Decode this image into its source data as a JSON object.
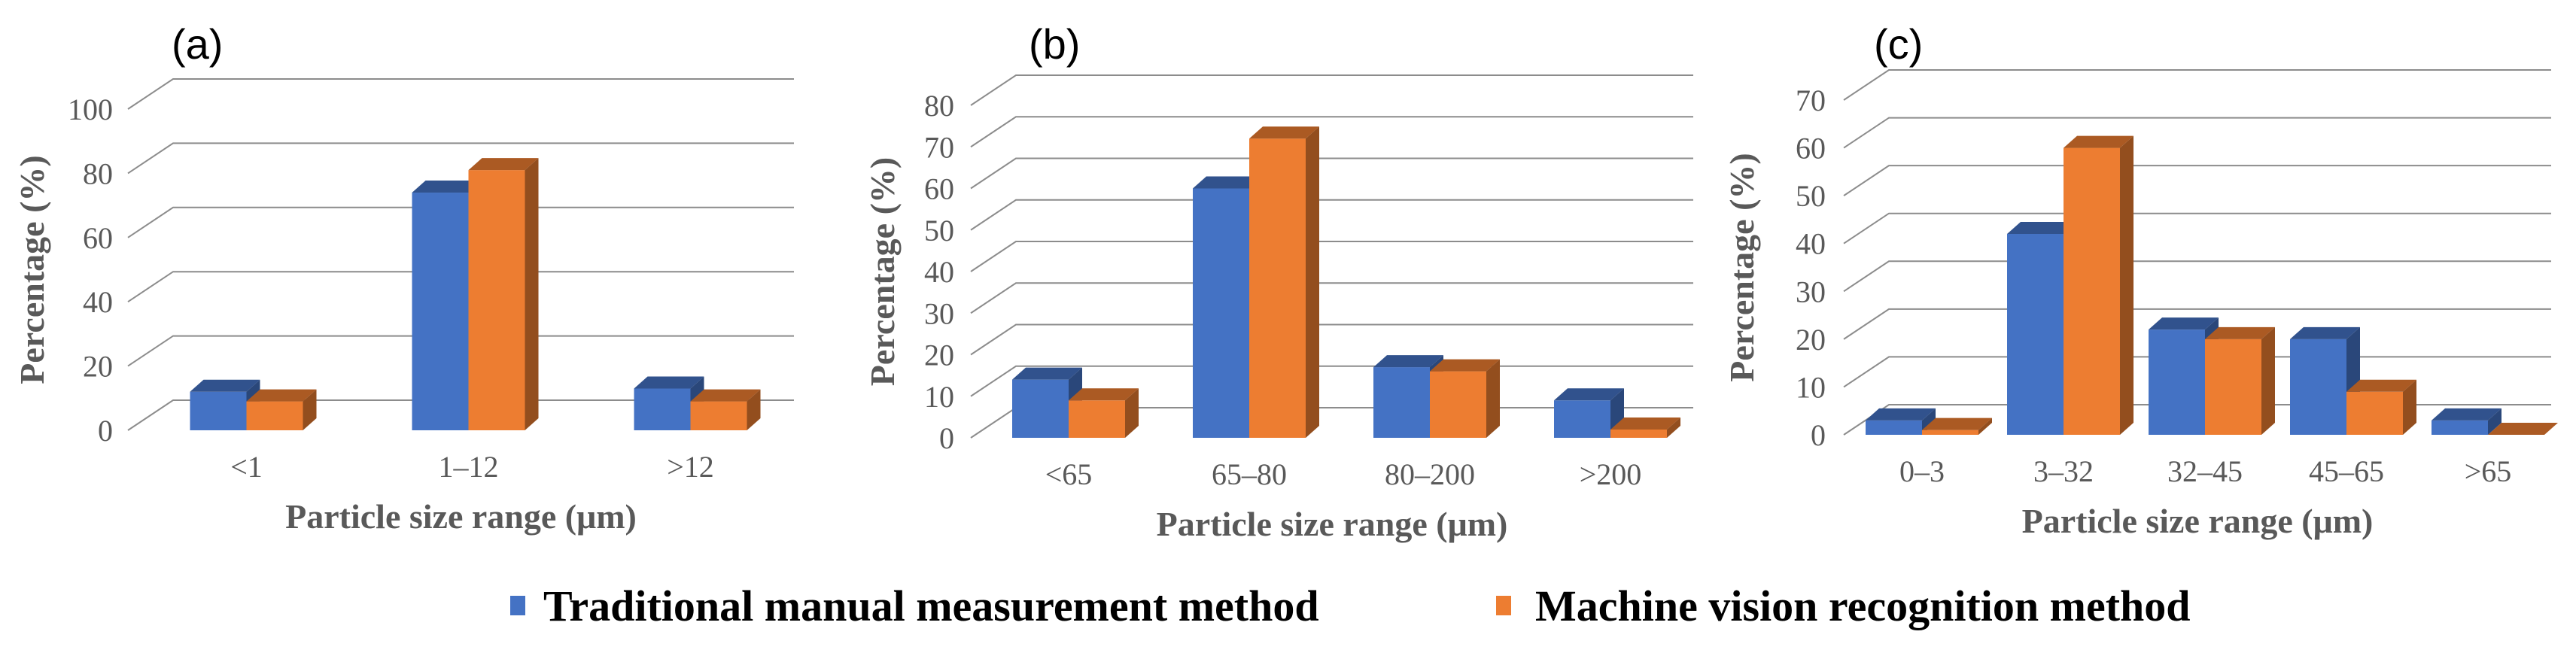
{
  "chart_data": [
    {
      "type": "bar",
      "panel_label": "(a)",
      "categories": [
        "<1",
        "1–12",
        ">12"
      ],
      "series": [
        {
          "name": "Traditional manual measurement method",
          "values": [
            12,
            74,
            13
          ]
        },
        {
          "name": "Machine vision recognition method",
          "values": [
            9,
            81,
            9
          ]
        }
      ],
      "xlabel": "Particle size range (μm)",
      "ylabel": "Percentage (%)",
      "ylim": [
        0,
        100
      ],
      "yticks": [
        "0",
        "20",
        "40",
        "60",
        "80",
        "100"
      ]
    },
    {
      "type": "bar",
      "panel_label": "(b)",
      "categories": [
        "<65",
        "65–80",
        "80–200",
        ">200"
      ],
      "series": [
        {
          "name": "Traditional manual measurement method",
          "values": [
            14,
            60,
            17,
            9
          ]
        },
        {
          "name": "Machine vision recognition method",
          "values": [
            9,
            72,
            16,
            2
          ]
        }
      ],
      "xlabel": "Particle size range (μm)",
      "ylabel": "Percentage (%)",
      "ylim": [
        0,
        80
      ],
      "yticks": [
        "0",
        "10",
        "20",
        "30",
        "40",
        "50",
        "60",
        "70",
        "80"
      ]
    },
    {
      "type": "bar",
      "panel_label": "(c)",
      "categories": [
        "0–3",
        "3–32",
        "32–45",
        "45–65",
        ">65"
      ],
      "series": [
        {
          "name": "Traditional manual measurement method",
          "values": [
            3,
            42,
            22,
            20,
            3
          ]
        },
        {
          "name": "Machine vision recognition method",
          "values": [
            1,
            60,
            20,
            9,
            0
          ]
        }
      ],
      "xlabel": "Particle size range (μm)",
      "ylabel": "Percentage (%)",
      "ylim": [
        0,
        70
      ],
      "yticks": [
        "0",
        "10",
        "20",
        "30",
        "40",
        "50",
        "60",
        "70"
      ]
    }
  ],
  "legend": [
    {
      "name": "Traditional manual measurement method",
      "color": "#4472C4"
    },
    {
      "name": "Machine vision recognition method",
      "color": "#ED7D31"
    }
  ]
}
